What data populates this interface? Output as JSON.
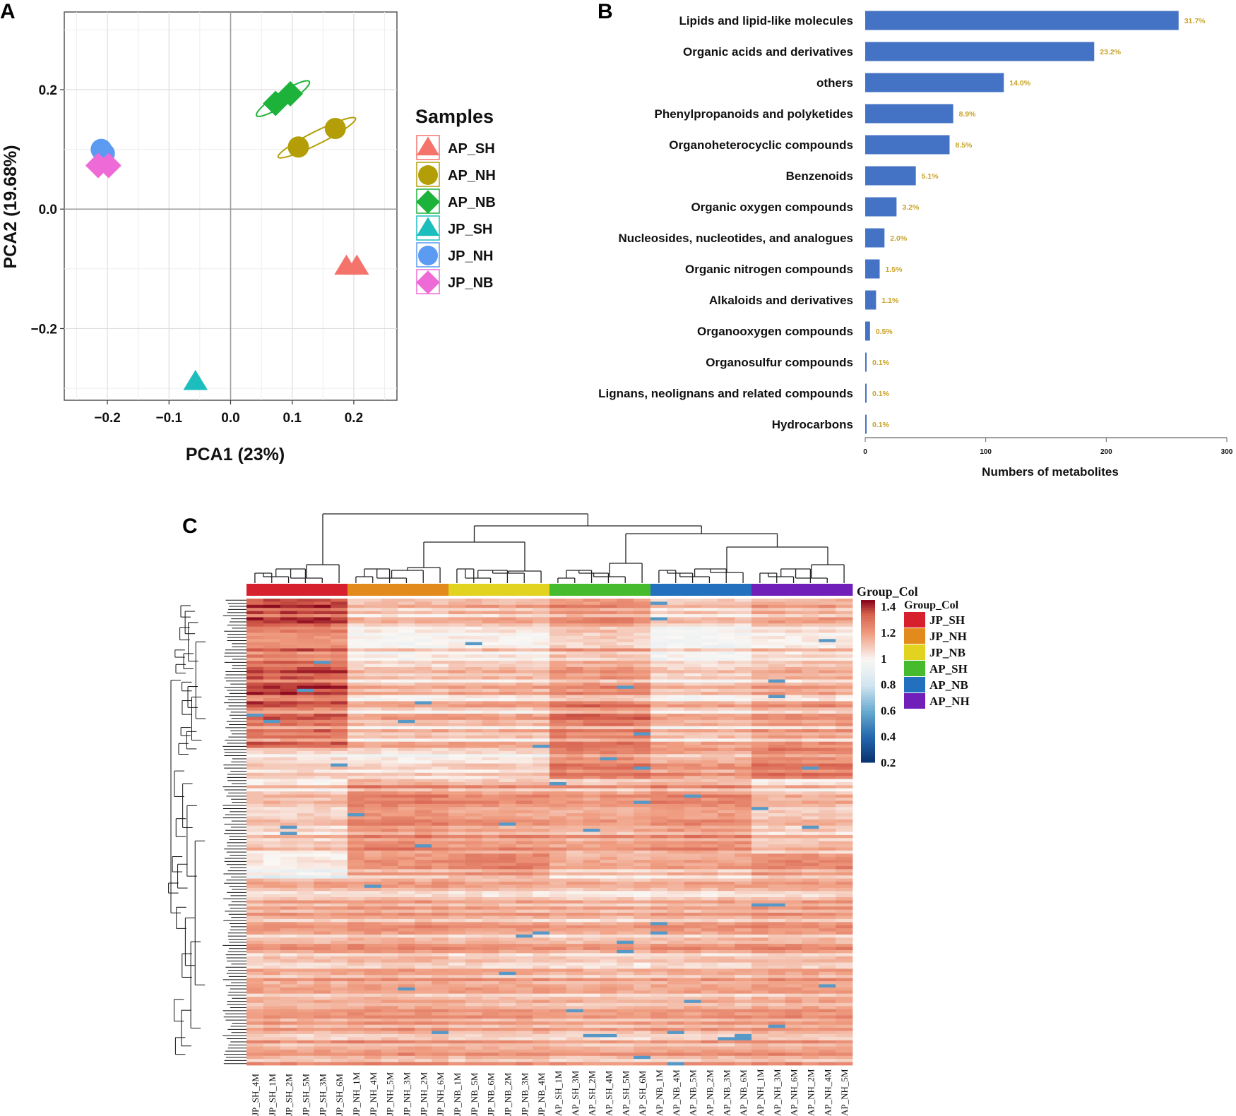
{
  "chart_data": [
    {
      "panel": "A",
      "type": "scatter",
      "xlabel": "PCA1 (23%)",
      "ylabel": "PCA2 (19.68%)",
      "xlim": [
        -0.27,
        0.27
      ],
      "ylim": [
        -0.32,
        0.33
      ],
      "xticks": [
        -0.2,
        -0.1,
        0.0,
        0.1,
        0.2
      ],
      "xtick_labels": [
        "−0.2",
        "−0.1",
        "0.0",
        "0.1",
        "0.2"
      ],
      "yticks": [
        -0.2,
        0.0,
        0.2
      ],
      "ytick_labels": [
        "−0.2",
        "0.0",
        "0.2"
      ],
      "grid": true,
      "legend_title": "Samples",
      "legend_position": "right",
      "series": [
        {
          "name": "AP_SH",
          "color": "#F4736B",
          "shape": "triangle",
          "points": [
            [
              0.188,
              -0.097
            ],
            [
              0.205,
              -0.097
            ]
          ]
        },
        {
          "name": "AP_NH",
          "color": "#B39E08",
          "shape": "circle",
          "points": [
            [
              0.11,
              0.104
            ],
            [
              0.17,
              0.135
            ]
          ],
          "ellipse": true
        },
        {
          "name": "AP_NB",
          "color": "#1DB33A",
          "shape": "diamond",
          "points": [
            [
              0.073,
              0.177
            ],
            [
              0.097,
              0.193
            ]
          ],
          "ellipse": true
        },
        {
          "name": "JP_SH",
          "color": "#1CBDBD",
          "shape": "triangle",
          "points": [
            [
              -0.057,
              -0.29
            ]
          ]
        },
        {
          "name": "JP_NH",
          "color": "#5B9BF2",
          "shape": "circle",
          "points": [
            [
              -0.21,
              0.1
            ],
            [
              -0.205,
              0.093
            ]
          ]
        },
        {
          "name": "JP_NB",
          "color": "#EE6AD7",
          "shape": "diamond",
          "points": [
            [
              -0.215,
              0.073
            ],
            [
              -0.198,
              0.073
            ]
          ]
        }
      ]
    },
    {
      "panel": "B",
      "type": "bar",
      "orientation": "horizontal",
      "xlabel": "Numbers of metabolites",
      "xlim": [
        0,
        300
      ],
      "xticks": [
        0,
        100,
        200,
        300
      ],
      "xtick_labels": [
        "0",
        "100",
        "200",
        "300"
      ],
      "bar_color": "#4472C4",
      "label_color": "#C9A227",
      "categories": [
        "Lipids and lipid-like molecules",
        "Organic acids and derivatives",
        "others",
        "Phenylpropanoids and polyketides",
        "Organoheterocyclic compounds",
        "Benzenoids",
        "Organic oxygen compounds",
        "Nucleosides, nucleotides, and analogues",
        "Organic nitrogen compounds",
        "Alkaloids and derivatives",
        "Organooxygen compounds",
        "Organosulfur compounds",
        "Lignans, neolignans and related compounds",
        "Hydrocarbons"
      ],
      "values": [
        260,
        190,
        115,
        73,
        70,
        42,
        26,
        16,
        12,
        9,
        4,
        1,
        1,
        1
      ],
      "data_labels": [
        "31.7%",
        "23.2%",
        "14.0%",
        "8.9%",
        "8.5%",
        "5.1%",
        "3.2%",
        "2.0%",
        "1.5%",
        "1.1%",
        "0.5%",
        "0.1%",
        "0.1%",
        "0.1%"
      ]
    },
    {
      "panel": "C",
      "type": "heatmap",
      "annotation_title": "Group_Col",
      "legend_title": "Group_Col",
      "colorbar_ticks": [
        1.4,
        1.2,
        1,
        0.8,
        0.6,
        0.4,
        0.2
      ],
      "colorbar_tick_labels": [
        "1.4",
        "1.2",
        "1",
        "0.8",
        "0.6",
        "0.4",
        "0.2"
      ],
      "colorbar_range": [
        0.2,
        1.45
      ],
      "groups": [
        {
          "name": "JP_SH",
          "color": "#D7202E"
        },
        {
          "name": "JP_NH",
          "color": "#E38A1D"
        },
        {
          "name": "JP_NB",
          "color": "#E3D321"
        },
        {
          "name": "AP_SH",
          "color": "#46BB2D"
        },
        {
          "name": "AP_NB",
          "color": "#2370BE"
        },
        {
          "name": "AP_NH",
          "color": "#7020B8"
        }
      ],
      "columns": [
        "JP_SH_4M",
        "JP_SH_1M",
        "JP_SH_2M",
        "JP_SH_5M",
        "JP_SH_3M",
        "JP_SH_6M",
        "JP_NH_1M",
        "JP_NH_4M",
        "JP_NH_5M",
        "JP_NH_3M",
        "JP_NH_2M",
        "JP_NH_6M",
        "JP_NB_1M",
        "JP_NB_5M",
        "JP_NB_6M",
        "JP_NB_2M",
        "JP_NB_3M",
        "JP_NB_4M",
        "AP_SH_1M",
        "AP_SH_3M",
        "AP_SH_2M",
        "AP_SH_4M",
        "AP_SH_5M",
        "AP_SH_6M",
        "AP_NB_1M",
        "AP_NB_4M",
        "AP_NB_5M",
        "AP_NB_2M",
        "AP_NB_3M",
        "AP_NB_6M",
        "AP_NH_1M",
        "AP_NH_3M",
        "AP_NH_6M",
        "AP_NH_2M",
        "AP_NH_4M",
        "AP_NH_5M"
      ],
      "column_groups": [
        0,
        0,
        0,
        0,
        0,
        0,
        1,
        1,
        1,
        1,
        1,
        1,
        2,
        2,
        2,
        2,
        2,
        2,
        3,
        3,
        3,
        3,
        3,
        3,
        4,
        4,
        4,
        4,
        4,
        4,
        5,
        5,
        5,
        5,
        5,
        5
      ],
      "row_bands": [
        {
          "rows": 34,
          "levels": [
            1.32,
            1.08,
            1.1,
            1.18,
            1.06,
            1.12
          ]
        },
        {
          "rows": 14,
          "levels": [
            1.26,
            1.1,
            1.1,
            1.24,
            1.1,
            1.16
          ]
        },
        {
          "rows": 10,
          "levels": [
            1.08,
            1.04,
            1.06,
            1.26,
            1.18,
            1.26
          ]
        },
        {
          "rows": 24,
          "levels": [
            1.06,
            1.2,
            1.16,
            1.14,
            1.18,
            1.08
          ]
        },
        {
          "rows": 8,
          "levels": [
            0.96,
            1.16,
            1.2,
            1.1,
            1.12,
            1.18
          ]
        },
        {
          "rows": 60,
          "levels": [
            1.14,
            1.16,
            1.14,
            1.12,
            1.14,
            1.16
          ]
        }
      ]
    }
  ],
  "panels": {
    "a": "A",
    "b": "B",
    "c": "C"
  }
}
